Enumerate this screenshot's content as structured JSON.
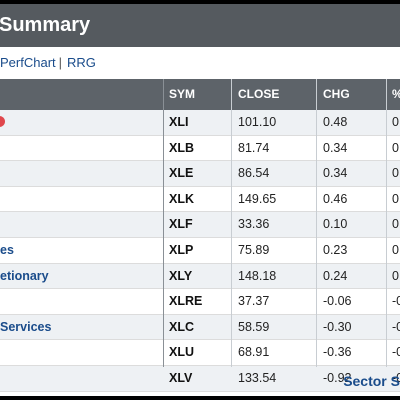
{
  "header": {
    "title": "Summary"
  },
  "links": {
    "perfchart": "PerfChart",
    "separator": "|",
    "rrg": "RRG"
  },
  "table": {
    "columns": [
      "SYM",
      "CLOSE",
      "CHG",
      "%"
    ],
    "rows": [
      {
        "name": "",
        "sym": "XLI",
        "close": "101.10",
        "chg": "0.48",
        "pct": "0."
      },
      {
        "name": "",
        "sym": "XLB",
        "close": "81.74",
        "chg": "0.34",
        "pct": "0."
      },
      {
        "name": "",
        "sym": "XLE",
        "close": "86.54",
        "chg": "0.34",
        "pct": "0."
      },
      {
        "name": "",
        "sym": "XLK",
        "close": "149.65",
        "chg": "0.46",
        "pct": "0."
      },
      {
        "name": "",
        "sym": "XLF",
        "close": "33.36",
        "chg": "0.10",
        "pct": "0."
      },
      {
        "name": "es",
        "sym": "XLP",
        "close": "75.89",
        "chg": "0.23",
        "pct": "0."
      },
      {
        "name": "etionary",
        "sym": "XLY",
        "close": "148.18",
        "chg": "0.24",
        "pct": "0."
      },
      {
        "name": "",
        "sym": "XLRE",
        "close": "37.37",
        "chg": "-0.06",
        "pct": "-0"
      },
      {
        "name": "Services",
        "sym": "XLC",
        "close": "58.59",
        "chg": "-0.30",
        "pct": "-0"
      },
      {
        "name": "",
        "sym": "XLU",
        "close": "68.91",
        "chg": "-0.36",
        "pct": "-0"
      },
      {
        "name": "",
        "sym": "XLV",
        "close": "133.54",
        "chg": "-0.92",
        "pct": "-0"
      }
    ]
  },
  "footer": {
    "link": "Sector S"
  },
  "colors": {
    "header_bg": "#555a5f",
    "table_head_bg": "#5d6369",
    "link": "#1a4c8b",
    "indicator": "#e0474c"
  }
}
